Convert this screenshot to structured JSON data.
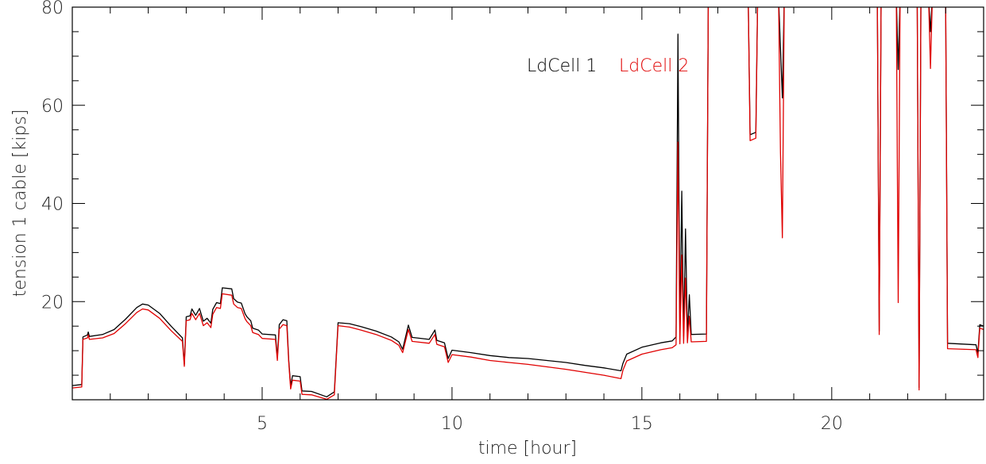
{
  "chart_data": {
    "type": "line",
    "title": "",
    "xlabel": "time [hour]",
    "ylabel": "tension 1 cable [kips]",
    "xlim": [
      0,
      24
    ],
    "ylim": [
      0,
      80
    ],
    "x_ticks": [
      5,
      10,
      15,
      20
    ],
    "x_tick_labels": [
      "5",
      "10",
      "15",
      "20"
    ],
    "y_ticks": [
      20,
      40,
      60,
      80
    ],
    "y_tick_labels": [
      "20",
      "40",
      "60",
      "80"
    ],
    "grid": false,
    "legend_position": "top-center",
    "series": [
      {
        "name": "LdCell 1",
        "color": "#000000",
        "points": [
          [
            0.0,
            2.9
          ],
          [
            0.25,
            3.1
          ],
          [
            0.28,
            12.8
          ],
          [
            0.4,
            13.2
          ],
          [
            0.42,
            13.8
          ],
          [
            0.45,
            12.9
          ],
          [
            0.8,
            13.3
          ],
          [
            1.1,
            14.3
          ],
          [
            1.4,
            16.4
          ],
          [
            1.7,
            18.8
          ],
          [
            1.85,
            19.5
          ],
          [
            2.0,
            19.3
          ],
          [
            2.3,
            17.6
          ],
          [
            2.6,
            15.0
          ],
          [
            2.9,
            12.6
          ],
          [
            2.95,
            7.2
          ],
          [
            3.0,
            16.9
          ],
          [
            3.1,
            17.1
          ],
          [
            3.15,
            18.5
          ],
          [
            3.25,
            17.2
          ],
          [
            3.35,
            18.6
          ],
          [
            3.45,
            16.0
          ],
          [
            3.55,
            16.6
          ],
          [
            3.65,
            15.6
          ],
          [
            3.7,
            18.4
          ],
          [
            3.8,
            19.8
          ],
          [
            3.9,
            19.6
          ],
          [
            3.95,
            22.8
          ],
          [
            4.2,
            22.6
          ],
          [
            4.25,
            20.6
          ],
          [
            4.35,
            19.9
          ],
          [
            4.45,
            19.7
          ],
          [
            4.55,
            17.5
          ],
          [
            4.6,
            16.9
          ],
          [
            4.7,
            16.1
          ],
          [
            4.75,
            14.6
          ],
          [
            4.9,
            14.2
          ],
          [
            5.0,
            13.4
          ],
          [
            5.35,
            13.2
          ],
          [
            5.4,
            8.6
          ],
          [
            5.45,
            15.3
          ],
          [
            5.55,
            16.3
          ],
          [
            5.65,
            16.1
          ],
          [
            5.7,
            8.1
          ],
          [
            5.75,
            2.9
          ],
          [
            5.8,
            4.9
          ],
          [
            6.0,
            4.7
          ],
          [
            6.05,
            1.8
          ],
          [
            6.3,
            1.7
          ],
          [
            6.7,
            0.6
          ],
          [
            6.9,
            1.6
          ],
          [
            7.0,
            15.7
          ],
          [
            7.3,
            15.5
          ],
          [
            7.6,
            14.9
          ],
          [
            8.0,
            14.0
          ],
          [
            8.4,
            12.8
          ],
          [
            8.6,
            11.8
          ],
          [
            8.7,
            10.3
          ],
          [
            8.85,
            15.2
          ],
          [
            8.95,
            12.7
          ],
          [
            9.4,
            12.3
          ],
          [
            9.55,
            14.2
          ],
          [
            9.6,
            12.1
          ],
          [
            9.8,
            11.6
          ],
          [
            9.9,
            8.4
          ],
          [
            10.0,
            10.1
          ],
          [
            10.5,
            9.6
          ],
          [
            11.0,
            9.0
          ],
          [
            11.5,
            8.6
          ],
          [
            12.0,
            8.4
          ],
          [
            12.5,
            8.0
          ],
          [
            13.0,
            7.6
          ],
          [
            13.5,
            7.0
          ],
          [
            14.0,
            6.5
          ],
          [
            14.45,
            5.9
          ],
          [
            14.5,
            7.4
          ],
          [
            14.6,
            9.3
          ],
          [
            15.0,
            10.7
          ],
          [
            15.5,
            11.6
          ],
          [
            15.8,
            12.0
          ],
          [
            15.9,
            12.8
          ],
          [
            15.95,
            74.5
          ],
          [
            16.0,
            13.0
          ],
          [
            16.05,
            42.5
          ],
          [
            16.1,
            13.0
          ],
          [
            16.15,
            34.8
          ],
          [
            16.2,
            13.1
          ],
          [
            16.25,
            21.4
          ],
          [
            16.3,
            13.3
          ],
          [
            16.7,
            13.4
          ],
          [
            16.75,
            82.0
          ],
          [
            17.8,
            82.0
          ],
          [
            17.85,
            54.0
          ],
          [
            18.0,
            54.5
          ],
          [
            18.05,
            82.0
          ],
          [
            18.6,
            82.0
          ],
          [
            18.65,
            71.8
          ],
          [
            18.7,
            61.5
          ],
          [
            18.75,
            82.0
          ],
          [
            21.2,
            82.0
          ],
          [
            21.25,
            14.0
          ],
          [
            21.3,
            82.0
          ],
          [
            21.7,
            82.0
          ],
          [
            21.75,
            67.3
          ],
          [
            21.8,
            82.0
          ],
          [
            22.25,
            82.0
          ],
          [
            22.3,
            2.5
          ],
          [
            22.35,
            82.0
          ],
          [
            22.55,
            82.0
          ],
          [
            22.6,
            75.0
          ],
          [
            22.65,
            82.0
          ],
          [
            23.0,
            82.0
          ],
          [
            23.05,
            11.5
          ],
          [
            23.8,
            11.2
          ],
          [
            23.85,
            9.5
          ],
          [
            23.9,
            15.3
          ],
          [
            24.0,
            15.0
          ]
        ]
      },
      {
        "name": "LdCell 2",
        "color": "#e00000",
        "points": [
          [
            0.0,
            2.4
          ],
          [
            0.25,
            2.6
          ],
          [
            0.28,
            12.3
          ],
          [
            0.4,
            12.6
          ],
          [
            0.42,
            13.2
          ],
          [
            0.45,
            12.3
          ],
          [
            0.8,
            12.6
          ],
          [
            1.1,
            13.5
          ],
          [
            1.4,
            15.5
          ],
          [
            1.7,
            17.8
          ],
          [
            1.85,
            18.5
          ],
          [
            2.0,
            18.3
          ],
          [
            2.3,
            16.6
          ],
          [
            2.6,
            14.1
          ],
          [
            2.9,
            11.9
          ],
          [
            2.95,
            6.8
          ],
          [
            3.0,
            16.1
          ],
          [
            3.1,
            16.3
          ],
          [
            3.15,
            17.6
          ],
          [
            3.25,
            16.3
          ],
          [
            3.35,
            17.6
          ],
          [
            3.45,
            15.1
          ],
          [
            3.55,
            15.7
          ],
          [
            3.65,
            14.7
          ],
          [
            3.7,
            17.4
          ],
          [
            3.8,
            18.8
          ],
          [
            3.9,
            18.6
          ],
          [
            3.95,
            21.6
          ],
          [
            4.2,
            21.3
          ],
          [
            4.25,
            19.5
          ],
          [
            4.35,
            18.8
          ],
          [
            4.45,
            18.6
          ],
          [
            4.55,
            16.5
          ],
          [
            4.6,
            15.9
          ],
          [
            4.7,
            15.1
          ],
          [
            4.75,
            13.7
          ],
          [
            4.9,
            13.3
          ],
          [
            5.0,
            12.5
          ],
          [
            5.35,
            12.3
          ],
          [
            5.4,
            8.0
          ],
          [
            5.45,
            14.4
          ],
          [
            5.55,
            15.3
          ],
          [
            5.65,
            15.1
          ],
          [
            5.7,
            7.6
          ],
          [
            5.75,
            2.2
          ],
          [
            5.8,
            4.0
          ],
          [
            6.0,
            3.8
          ],
          [
            6.05,
            1.1
          ],
          [
            6.3,
            1.0
          ],
          [
            6.7,
            0.1
          ],
          [
            6.9,
            1.0
          ],
          [
            7.0,
            15.1
          ],
          [
            7.3,
            14.8
          ],
          [
            7.6,
            14.2
          ],
          [
            8.0,
            13.3
          ],
          [
            8.4,
            12.1
          ],
          [
            8.6,
            11.1
          ],
          [
            8.7,
            9.6
          ],
          [
            8.85,
            14.3
          ],
          [
            8.95,
            11.9
          ],
          [
            9.4,
            11.5
          ],
          [
            9.55,
            13.3
          ],
          [
            9.6,
            11.3
          ],
          [
            9.8,
            10.8
          ],
          [
            9.9,
            7.6
          ],
          [
            10.0,
            9.2
          ],
          [
            10.5,
            8.7
          ],
          [
            11.0,
            8.0
          ],
          [
            11.5,
            7.6
          ],
          [
            12.0,
            7.2
          ],
          [
            12.5,
            6.7
          ],
          [
            13.0,
            6.2
          ],
          [
            13.5,
            5.6
          ],
          [
            14.0,
            5.0
          ],
          [
            14.45,
            4.3
          ],
          [
            14.5,
            6.0
          ],
          [
            14.6,
            7.9
          ],
          [
            15.0,
            9.3
          ],
          [
            15.5,
            10.2
          ],
          [
            15.8,
            10.6
          ],
          [
            15.9,
            11.2
          ],
          [
            15.95,
            52.5
          ],
          [
            16.0,
            11.4
          ],
          [
            16.05,
            29.5
          ],
          [
            16.1,
            11.5
          ],
          [
            16.15,
            24.8
          ],
          [
            16.2,
            11.6
          ],
          [
            16.25,
            17.0
          ],
          [
            16.3,
            11.8
          ],
          [
            16.7,
            11.9
          ],
          [
            16.75,
            82.0
          ],
          [
            17.8,
            82.0
          ],
          [
            17.85,
            52.8
          ],
          [
            18.0,
            53.3
          ],
          [
            18.05,
            82.0
          ],
          [
            18.6,
            82.0
          ],
          [
            18.65,
            50.5
          ],
          [
            18.7,
            33.0
          ],
          [
            18.75,
            82.0
          ],
          [
            21.2,
            82.0
          ],
          [
            21.25,
            13.3
          ],
          [
            21.3,
            82.0
          ],
          [
            21.7,
            82.0
          ],
          [
            21.75,
            19.8
          ],
          [
            21.8,
            82.0
          ],
          [
            22.25,
            82.0
          ],
          [
            22.3,
            2.0
          ],
          [
            22.35,
            82.0
          ],
          [
            22.55,
            82.0
          ],
          [
            22.6,
            67.5
          ],
          [
            22.65,
            82.0
          ],
          [
            23.0,
            82.0
          ],
          [
            23.05,
            10.4
          ],
          [
            23.8,
            10.2
          ],
          [
            23.85,
            8.6
          ],
          [
            23.9,
            14.6
          ],
          [
            24.0,
            14.3
          ]
        ]
      }
    ]
  }
}
